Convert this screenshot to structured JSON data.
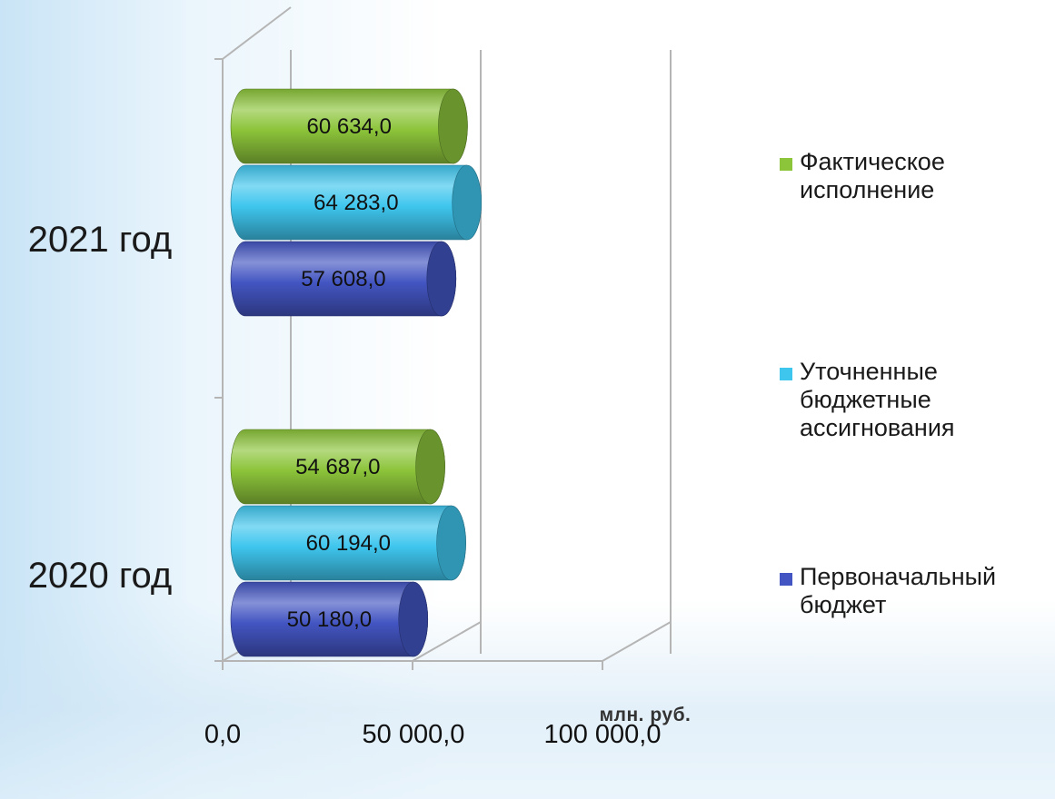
{
  "chart_data": {
    "type": "bar",
    "orientation": "horizontal",
    "categories": [
      "2021 год",
      "2020 год"
    ],
    "series": [
      {
        "name": "Фактическое исполнение",
        "values": [
          60634.0,
          54687.0
        ],
        "color": "#8cc43a",
        "labels": [
          "60 634,0",
          "54 687,0"
        ]
      },
      {
        "name": "Уточненные бюджетные ассигнования",
        "values": [
          64283.0,
          60194.0
        ],
        "color": "#3fc6ee",
        "labels": [
          "64 283,0",
          "60 194,0"
        ]
      },
      {
        "name": "Первоначальный бюджет",
        "values": [
          57608.0,
          50180.0
        ],
        "color": "#4355c2",
        "labels": [
          "57 608,0",
          "50 180,0"
        ]
      }
    ],
    "x_ticks": [
      "0,0",
      "50 000,0",
      "100 000,0"
    ],
    "xlim": [
      0,
      100000
    ],
    "unit": "млн. руб.",
    "legend_position": "right"
  }
}
